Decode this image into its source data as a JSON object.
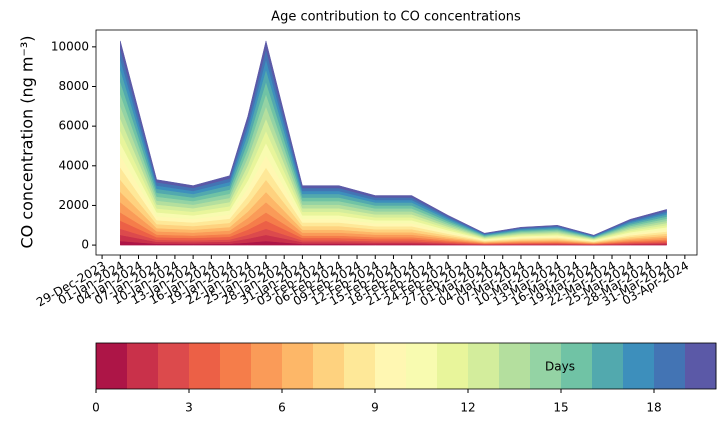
{
  "chart_data": [
    {
      "type": "stacked-area",
      "title": "Age contribution to CO concentrations",
      "ylabel": "CO concentration (ng m⁻³)",
      "x": [
        "01-Jan-2024",
        "07-Jan-2024",
        "13-Jan-2024",
        "19-Jan-2024",
        "22-Jan-2024",
        "25-Jan-2024",
        "31-Jan-2024",
        "06-Feb-2024",
        "12-Feb-2024",
        "18-Feb-2024",
        "24-Feb-2024",
        "01-Mar-2024",
        "07-Mar-2024",
        "13-Mar-2024",
        "19-Mar-2024",
        "25-Mar-2024",
        "31-Mar-2024"
      ],
      "series": [
        {
          "color": "#ad1547",
          "values": [
            206,
            66,
            60,
            70,
            130,
            206,
            60,
            60,
            50,
            50,
            30,
            12,
            18,
            20,
            10,
            26,
            36
          ]
        },
        {
          "color": "#c9314a",
          "values": [
            309,
            99,
            90,
            105,
            195,
            309,
            90,
            90,
            75,
            75,
            45,
            18,
            27,
            30,
            15,
            39,
            54
          ]
        },
        {
          "color": "#dc4a4c",
          "values": [
            309,
            99,
            90,
            105,
            195,
            309,
            90,
            90,
            75,
            75,
            45,
            18,
            27,
            30,
            15,
            39,
            54
          ]
        },
        {
          "color": "#ec6046",
          "values": [
            412,
            132,
            120,
            140,
            260,
            412,
            120,
            120,
            100,
            100,
            60,
            24,
            36,
            40,
            20,
            52,
            72
          ]
        },
        {
          "color": "#f57d4a",
          "values": [
            412,
            132,
            120,
            140,
            260,
            412,
            120,
            120,
            100,
            100,
            60,
            24,
            36,
            40,
            20,
            52,
            72
          ]
        },
        {
          "color": "#fa9b58",
          "values": [
            515,
            165,
            150,
            175,
            325,
            515,
            150,
            150,
            125,
            125,
            75,
            30,
            45,
            50,
            25,
            65,
            90
          ]
        },
        {
          "color": "#fdb768",
          "values": [
            515,
            165,
            150,
            175,
            325,
            515,
            150,
            150,
            125,
            125,
            75,
            30,
            45,
            50,
            25,
            65,
            90
          ]
        },
        {
          "color": "#fed27f",
          "values": [
            618,
            198,
            180,
            210,
            390,
            618,
            180,
            180,
            150,
            150,
            90,
            36,
            54,
            60,
            30,
            78,
            108
          ]
        },
        {
          "color": "#fee898",
          "values": [
            618,
            198,
            180,
            210,
            390,
            618,
            180,
            180,
            150,
            150,
            90,
            36,
            54,
            60,
            30,
            78,
            108
          ]
        },
        {
          "color": "#fff7b2",
          "values": [
            618,
            198,
            180,
            210,
            390,
            618,
            180,
            180,
            150,
            150,
            90,
            36,
            54,
            60,
            30,
            78,
            108
          ]
        },
        {
          "color": "#f8fbb0",
          "values": [
            618,
            198,
            180,
            210,
            390,
            618,
            180,
            180,
            150,
            150,
            90,
            36,
            54,
            60,
            30,
            78,
            108
          ]
        },
        {
          "color": "#e8f59b",
          "values": [
            618,
            198,
            180,
            210,
            390,
            618,
            180,
            180,
            150,
            150,
            90,
            36,
            54,
            60,
            30,
            78,
            108
          ]
        },
        {
          "color": "#d3ed9c",
          "values": [
            618,
            198,
            180,
            210,
            390,
            618,
            180,
            180,
            150,
            150,
            90,
            36,
            54,
            60,
            30,
            78,
            108
          ]
        },
        {
          "color": "#b4df9e",
          "values": [
            618,
            198,
            180,
            210,
            390,
            618,
            180,
            180,
            150,
            150,
            90,
            36,
            54,
            60,
            30,
            78,
            108
          ]
        },
        {
          "color": "#94d3a4",
          "values": [
            618,
            198,
            180,
            210,
            390,
            618,
            180,
            180,
            150,
            150,
            90,
            36,
            54,
            60,
            30,
            78,
            108
          ]
        },
        {
          "color": "#70c3a5",
          "values": [
            618,
            198,
            180,
            210,
            390,
            618,
            180,
            180,
            150,
            150,
            90,
            36,
            54,
            60,
            30,
            78,
            108
          ]
        },
        {
          "color": "#52a9ae",
          "values": [
            618,
            198,
            180,
            210,
            390,
            618,
            180,
            180,
            150,
            150,
            90,
            36,
            54,
            60,
            30,
            78,
            108
          ]
        },
        {
          "color": "#3d8fbc",
          "values": [
            515,
            165,
            150,
            175,
            325,
            515,
            150,
            150,
            125,
            125,
            75,
            30,
            45,
            50,
            25,
            65,
            90
          ]
        },
        {
          "color": "#4374b4",
          "values": [
            515,
            165,
            150,
            175,
            325,
            515,
            150,
            150,
            125,
            125,
            75,
            30,
            45,
            50,
            25,
            65,
            90
          ]
        },
        {
          "color": "#5b59a7",
          "values": [
            412,
            132,
            120,
            140,
            260,
            412,
            120,
            120,
            100,
            100,
            60,
            24,
            36,
            40,
            20,
            52,
            72
          ]
        }
      ],
      "xlim": [
        "28-Dec-2023",
        "05-Apr-2024"
      ],
      "xticks": [
        "29-Dec-2023",
        "01-Jan-2024",
        "04-Jan-2024",
        "07-Jan-2024",
        "10-Jan-2024",
        "13-Jan-2024",
        "16-Jan-2024",
        "19-Jan-2024",
        "22-Jan-2024",
        "25-Jan-2024",
        "28-Jan-2024",
        "31-Jan-2024",
        "03-Feb-2024",
        "06-Feb-2024",
        "09-Feb-2024",
        "12-Feb-2024",
        "15-Feb-2024",
        "18-Feb-2024",
        "21-Feb-2024",
        "24-Feb-2024",
        "27-Feb-2024",
        "01-Mar-2024",
        "04-Mar-2024",
        "07-Mar-2024",
        "10-Mar-2024",
        "13-Mar-2024",
        "16-Mar-2024",
        "19-Mar-2024",
        "22-Mar-2024",
        "25-Mar-2024",
        "28-Mar-2024",
        "31-Mar-2024",
        "03-Apr-2024"
      ],
      "ylim": [
        -500,
        10850
      ],
      "yticks": [
        0,
        2000,
        4000,
        6000,
        8000,
        10000
      ]
    },
    {
      "type": "colorbar",
      "label": "Days",
      "xlim": [
        0,
        20
      ],
      "xticks": [
        0,
        3,
        6,
        9,
        12,
        15,
        18
      ],
      "colors": [
        "#ad1547",
        "#c9314a",
        "#dc4a4c",
        "#ec6046",
        "#f57d4a",
        "#fa9b58",
        "#fdb768",
        "#fed27f",
        "#fee898",
        "#fff7b2",
        "#f8fbb0",
        "#e8f59b",
        "#d3ed9c",
        "#b4df9e",
        "#94d3a4",
        "#70c3a5",
        "#52a9ae",
        "#3d8fbc",
        "#4374b4",
        "#5b59a7"
      ]
    }
  ]
}
